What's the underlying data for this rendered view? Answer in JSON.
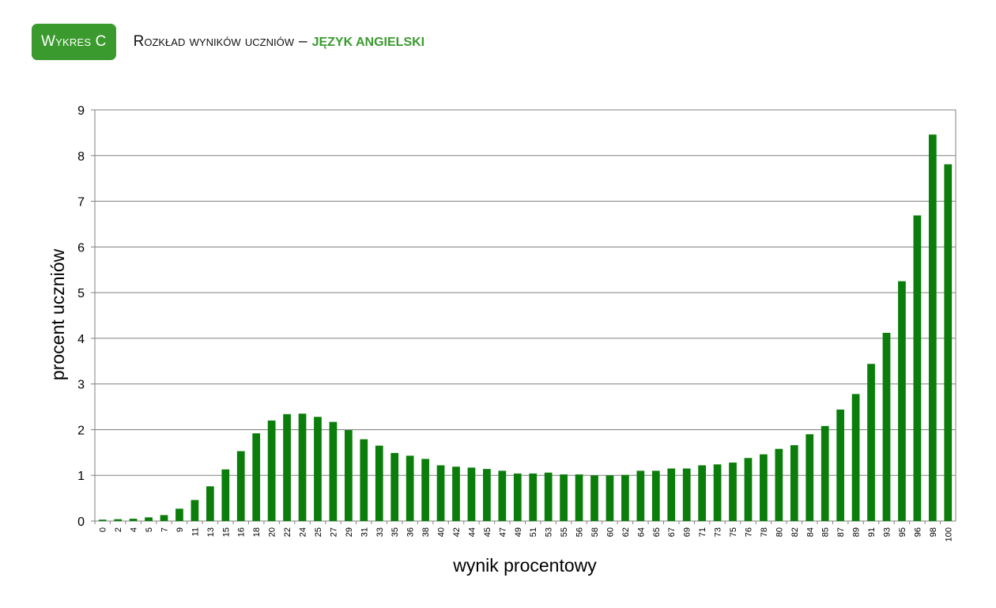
{
  "header": {
    "badge": "Wykres C",
    "title_main": "Rozkład wyników uczniów",
    "title_sep": "–",
    "title_highlight": "JĘZYK ANGIELSKI"
  },
  "colors": {
    "bar": "#0a7d0a",
    "badge_bg": "#3a9a2e",
    "highlight": "#3a9a2e",
    "grid": "#808080"
  },
  "chart_data": {
    "type": "bar",
    "xlabel": "wynik procentowy",
    "ylabel": "procent uczniów",
    "ylim": [
      0,
      9
    ],
    "yticks": [
      0,
      1,
      2,
      3,
      4,
      5,
      6,
      7,
      8,
      9
    ],
    "grid": true,
    "categories": [
      "0",
      "2",
      "4",
      "5",
      "7",
      "9",
      "11",
      "13",
      "15",
      "16",
      "18",
      "20",
      "22",
      "24",
      "25",
      "27",
      "29",
      "31",
      "33",
      "35",
      "36",
      "38",
      "40",
      "42",
      "44",
      "45",
      "47",
      "49",
      "51",
      "53",
      "55",
      "56",
      "58",
      "60",
      "62",
      "64",
      "65",
      "67",
      "69",
      "71",
      "73",
      "75",
      "76",
      "78",
      "80",
      "82",
      "84",
      "85",
      "87",
      "89",
      "91",
      "93",
      "95",
      "96",
      "98",
      "100"
    ],
    "values": [
      0.03,
      0.04,
      0.05,
      0.08,
      0.13,
      0.27,
      0.46,
      0.76,
      1.13,
      1.53,
      1.92,
      2.2,
      2.34,
      2.35,
      2.28,
      2.17,
      1.99,
      1.79,
      1.65,
      1.49,
      1.43,
      1.36,
      1.22,
      1.19,
      1.17,
      1.14,
      1.1,
      1.04,
      1.04,
      1.06,
      1.02,
      1.02,
      1.0,
      1.0,
      1.01,
      1.1,
      1.1,
      1.15,
      1.15,
      1.22,
      1.24,
      1.28,
      1.38,
      1.46,
      1.58,
      1.66,
      1.9,
      2.08,
      2.44,
      2.78,
      3.44,
      4.12,
      5.25,
      6.69,
      8.46,
      7.81
    ]
  }
}
